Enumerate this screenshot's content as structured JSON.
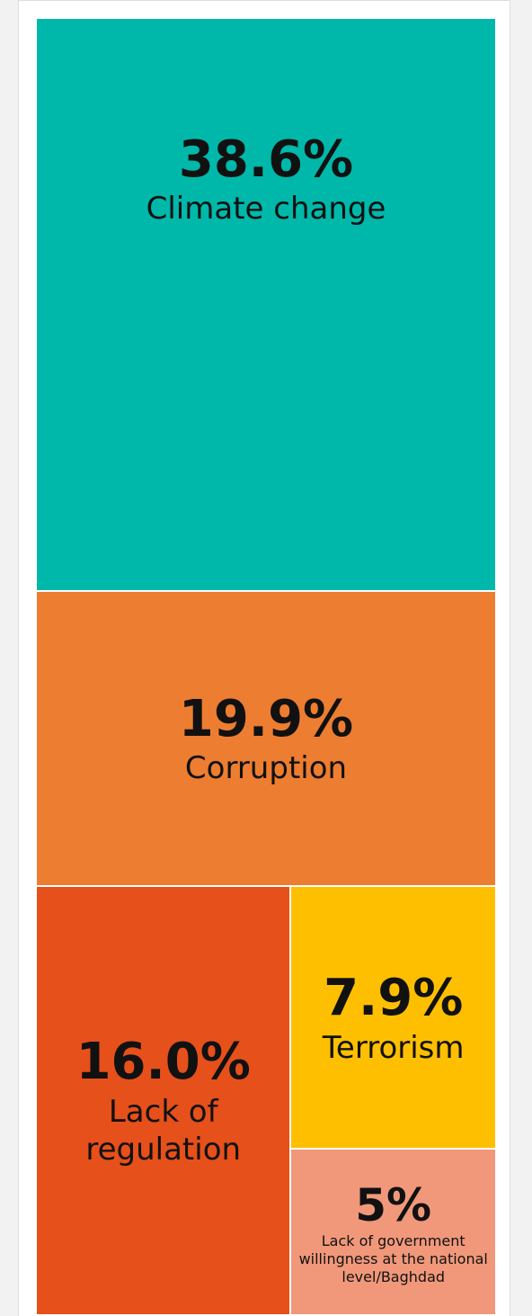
{
  "chart_data": {
    "type": "treemap",
    "categories": [
      "Climate change",
      "Corruption",
      "Lack of regulation",
      "Terrorism",
      "Lack of government willingness at the national level/Baghdad"
    ],
    "values": [
      38.6,
      19.9,
      16.0,
      7.9,
      5
    ],
    "value_labels": [
      "38.6%",
      "19.9%",
      "16.0%",
      "7.9%",
      "5%"
    ],
    "colors": [
      "#00b8aa",
      "#ed7d31",
      "#e6501b",
      "#fdbf00",
      "#f1987a"
    ]
  }
}
